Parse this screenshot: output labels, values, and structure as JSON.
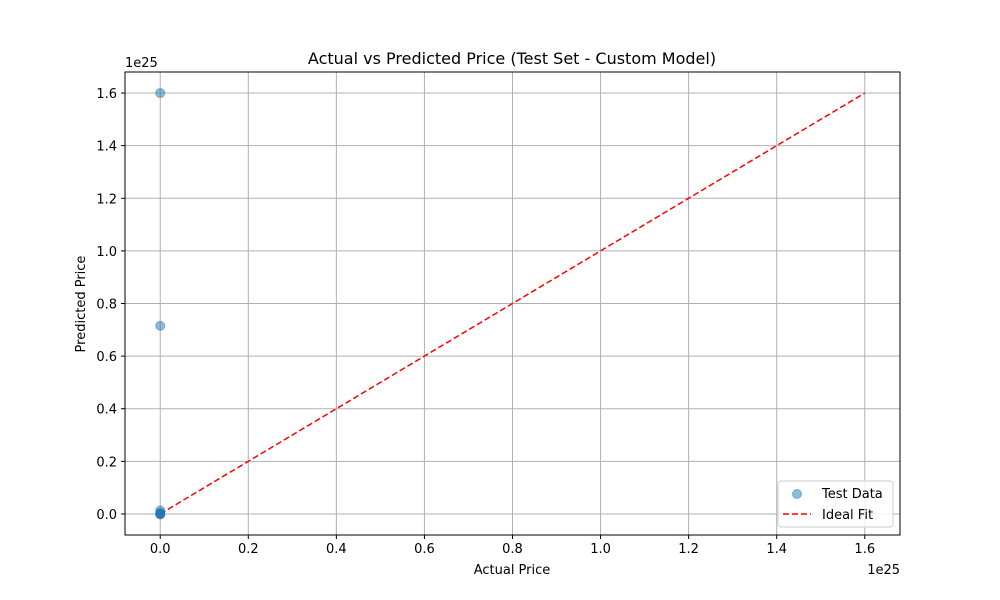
{
  "chart_data": {
    "type": "scatter",
    "title": "Actual vs Predicted Price (Test Set - Custom Model)",
    "xlabel": "Actual Price",
    "ylabel": "Predicted Price",
    "x_offset_label": "1e25",
    "y_offset_label": "1e25",
    "xlim": [
      -0.08,
      1.68
    ],
    "ylim": [
      -0.08,
      1.68
    ],
    "x_ticks": [
      0.0,
      0.2,
      0.4,
      0.6,
      0.8,
      1.0,
      1.2,
      1.4,
      1.6
    ],
    "x_tick_labels": [
      "0.0",
      "0.2",
      "0.4",
      "0.6",
      "0.8",
      "1.0",
      "1.2",
      "1.4",
      "1.6"
    ],
    "y_ticks": [
      0.0,
      0.2,
      0.4,
      0.6,
      0.8,
      1.0,
      1.2,
      1.4,
      1.6
    ],
    "y_tick_labels": [
      "0.0",
      "0.2",
      "0.4",
      "0.6",
      "0.8",
      "1.0",
      "1.2",
      "1.4",
      "1.6"
    ],
    "grid": true,
    "legend_position": "bottom-right",
    "series": [
      {
        "name": "Test Data",
        "kind": "scatter",
        "color": "#1f77b4",
        "alpha": 0.5,
        "points": [
          [
            0,
            1.6
          ],
          [
            0,
            0.715
          ],
          [
            0,
            0.013
          ],
          [
            0,
            0.004
          ],
          [
            0,
            0.002
          ],
          [
            0,
            0.001
          ],
          [
            0,
            0.0
          ],
          [
            0,
            -0.002
          ]
        ]
      },
      {
        "name": "Ideal Fit",
        "kind": "line",
        "color": "#ff0000",
        "dashed": true,
        "points": [
          [
            0,
            0
          ],
          [
            1.6,
            1.6
          ]
        ]
      }
    ]
  }
}
